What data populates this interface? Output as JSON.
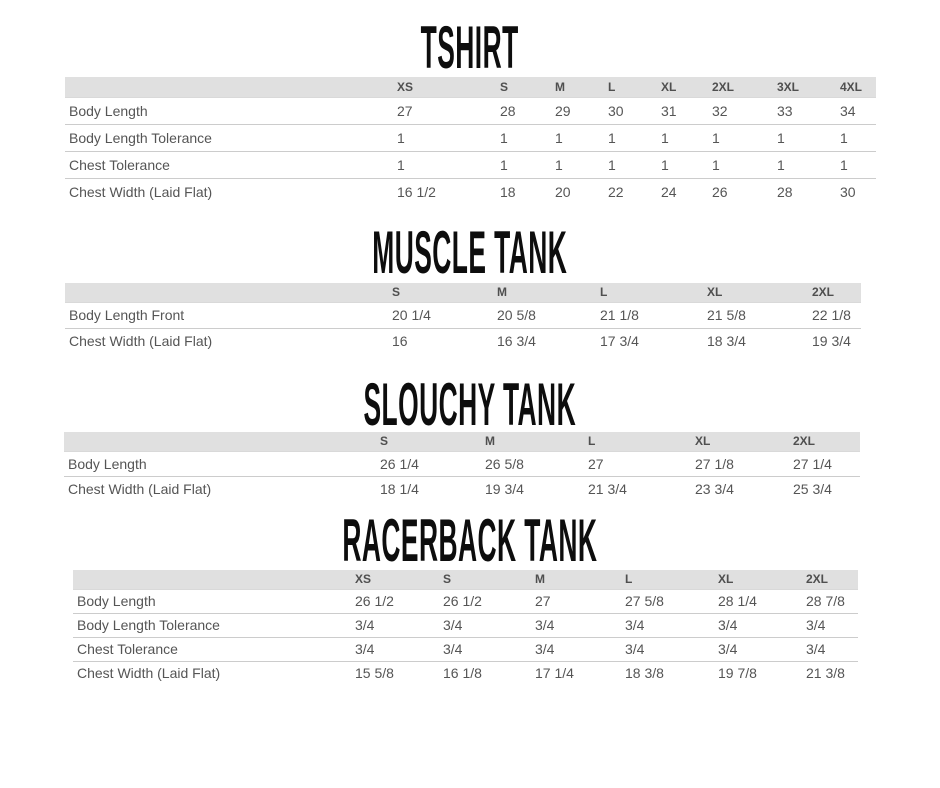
{
  "colors": {
    "page_bg": "#ffffff",
    "title": "#0d0d0d",
    "header_bg": "#e0e0e0",
    "header_text": "#4f4f4f",
    "body_text": "#555555",
    "row_border": "#cccccc",
    "header_border": "#d9d9d9"
  },
  "tables": [
    {
      "title": "TSHIRT",
      "sizes": [
        "XS",
        "S",
        "M",
        "L",
        "XL",
        "2XL",
        "3XL",
        "4XL"
      ],
      "rows": [
        {
          "label": "Body Length",
          "values": [
            "27",
            "28",
            "29",
            "30",
            "31",
            "32",
            "33",
            "34"
          ]
        },
        {
          "label": "Body Length Tolerance",
          "values": [
            "1",
            "1",
            "1",
            "1",
            "1",
            "1",
            "1",
            "1"
          ]
        },
        {
          "label": "Chest Tolerance",
          "values": [
            "1",
            "1",
            "1",
            "1",
            "1",
            "1",
            "1",
            "1"
          ]
        },
        {
          "label": "Chest Width (Laid Flat)",
          "values": [
            "16 1/2",
            "18",
            "20",
            "22",
            "24",
            "26",
            "28",
            "30"
          ]
        }
      ]
    },
    {
      "title": "MUSCLE TANK",
      "sizes": [
        "S",
        "M",
        "L",
        "XL",
        "2XL"
      ],
      "rows": [
        {
          "label": "Body Length Front",
          "values": [
            "20 1/4",
            "20 5/8",
            "21 1/8",
            "21 5/8",
            "22 1/8"
          ]
        },
        {
          "label": "Chest Width (Laid Flat)",
          "values": [
            "16",
            "16 3/4",
            "17 3/4",
            "18 3/4",
            "19 3/4"
          ]
        }
      ]
    },
    {
      "title": "SLOUCHY TANK",
      "sizes": [
        "S",
        "M",
        "L",
        "XL",
        "2XL"
      ],
      "rows": [
        {
          "label": "Body Length",
          "values": [
            "26 1/4",
            "26 5/8",
            "27",
            "27 1/8",
            "27 1/4"
          ]
        },
        {
          "label": "Chest Width (Laid Flat)",
          "values": [
            "18 1/4",
            "19 3/4",
            "21 3/4",
            "23 3/4",
            "25 3/4"
          ]
        }
      ]
    },
    {
      "title": "RACERBACK TANK",
      "sizes": [
        "XS",
        "S",
        "M",
        "L",
        "XL",
        "2XL"
      ],
      "rows": [
        {
          "label": "Body Length",
          "values": [
            "26 1/2",
            "26 1/2",
            "27",
            "27 5/8",
            "28 1/4",
            "28 7/8"
          ]
        },
        {
          "label": "Body Length Tolerance",
          "values": [
            "3/4",
            "3/4",
            "3/4",
            "3/4",
            "3/4",
            "3/4"
          ]
        },
        {
          "label": "Chest Tolerance",
          "values": [
            "3/4",
            "3/4",
            "3/4",
            "3/4",
            "3/4",
            "3/4"
          ]
        },
        {
          "label": "Chest Width (Laid Flat)",
          "values": [
            "15 5/8",
            "16 1/8",
            "17 1/4",
            "18 3/8",
            "19 7/8",
            "21 3/8"
          ]
        }
      ]
    }
  ]
}
